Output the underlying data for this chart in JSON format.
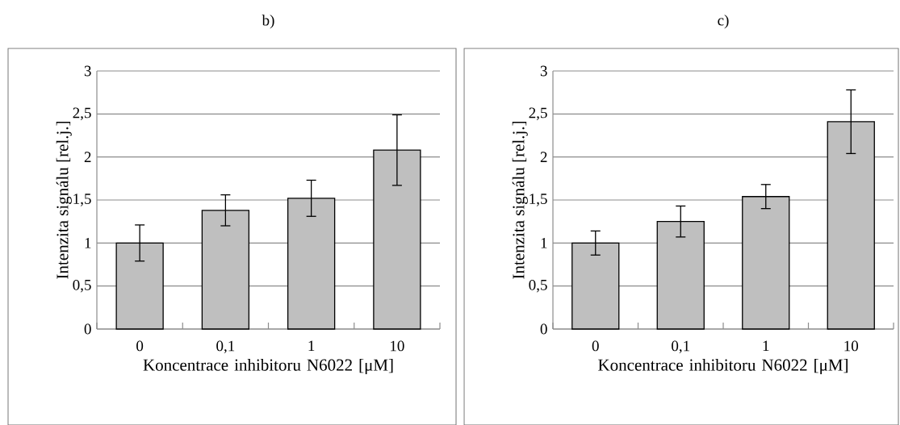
{
  "chart_data": [
    {
      "type": "bar",
      "title": "b)",
      "xlabel": "Koncentrace inhibitoru N6022 [μM]",
      "ylabel": "Intenzita signálu [rel.j.]",
      "categories": [
        "0",
        "0,1",
        "1",
        "10"
      ],
      "values": [
        1.0,
        1.38,
        1.52,
        2.08
      ],
      "errors": [
        0.21,
        0.18,
        0.21,
        0.41
      ],
      "color": "#bfbfbf",
      "ylim": [
        0,
        3
      ],
      "yticks": [
        0,
        {
          "value": 0.5,
          "label": "0,5"
        },
        1,
        {
          "value": 1.5,
          "label": "1,5"
        },
        2,
        {
          "value": 2.5,
          "label": "2,5"
        },
        3
      ],
      "grid": "y"
    },
    {
      "type": "bar",
      "title": "c)",
      "xlabel": "Koncentrace inhibitoru N6022 [μM]",
      "ylabel": "Intenzita signálu [rel.j.]",
      "categories": [
        "0",
        "0,1",
        "1",
        "10"
      ],
      "values": [
        1.0,
        1.25,
        1.54,
        2.41
      ],
      "errors": [
        0.14,
        0.18,
        0.14,
        0.37
      ],
      "color": "#bfbfbf",
      "ylim": [
        0,
        3
      ],
      "yticks": [
        0,
        {
          "value": 0.5,
          "label": "0,5"
        },
        1,
        {
          "value": 1.5,
          "label": "1,5"
        },
        2,
        {
          "value": 2.5,
          "label": "2,5"
        },
        3
      ],
      "grid": "y"
    }
  ]
}
